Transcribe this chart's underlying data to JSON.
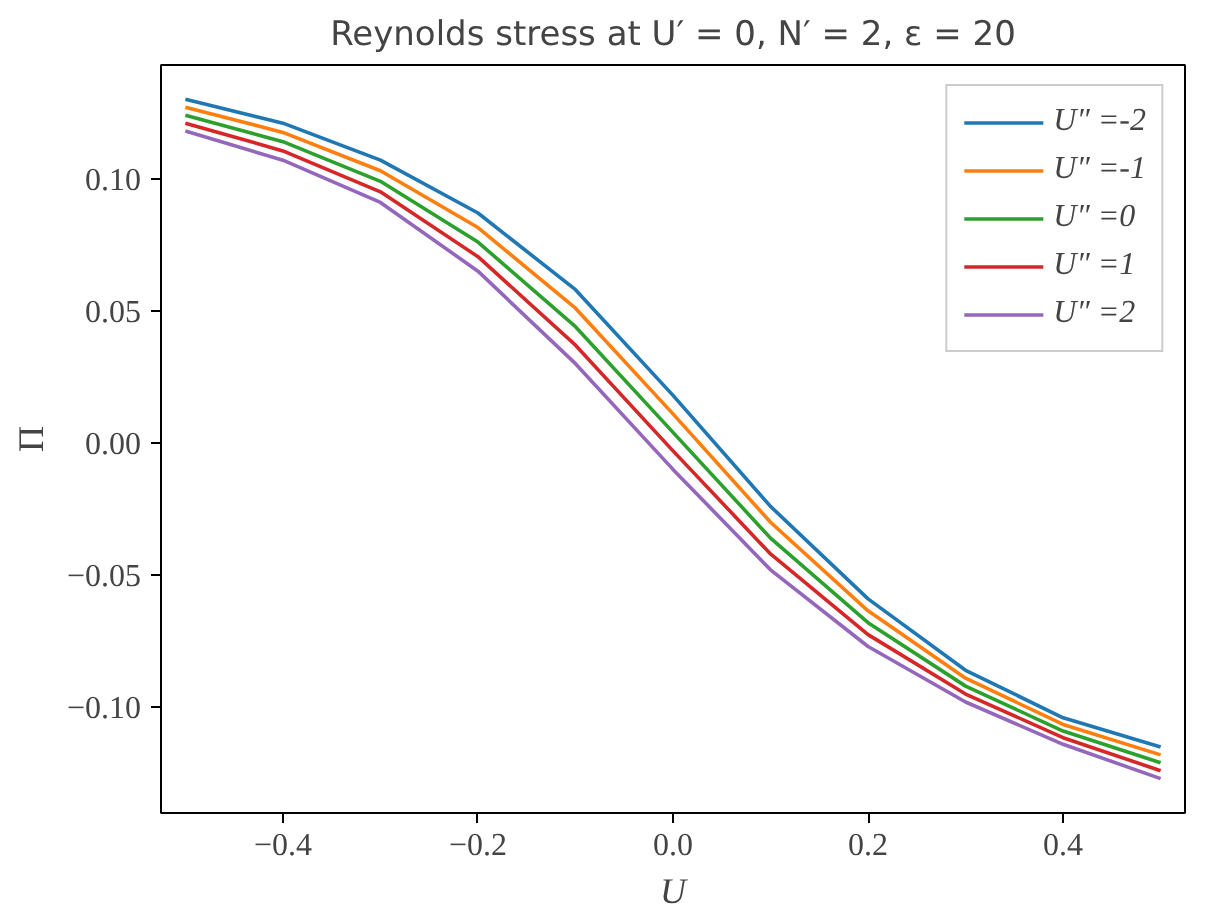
{
  "chart_data": {
    "type": "line",
    "title": "Reynolds stress at U′ = 0, N′ = 2, ε = 20",
    "xlabel": "U",
    "ylabel": "Π",
    "x": [
      -0.5,
      -0.4,
      -0.3,
      -0.2,
      -0.1,
      0.0,
      0.1,
      0.2,
      0.3,
      0.4,
      0.5
    ],
    "series": [
      {
        "name": "U″ =-2",
        "color": "#1f77b4",
        "values": [
          0.13,
          0.121,
          0.107,
          0.087,
          0.058,
          0.018,
          -0.024,
          -0.059,
          -0.086,
          -0.104,
          -0.115
        ]
      },
      {
        "name": "U″ =-1",
        "color": "#ff7f0e",
        "values": [
          0.127,
          0.1175,
          0.103,
          0.0815,
          0.051,
          0.011,
          -0.03,
          -0.0635,
          -0.089,
          -0.1065,
          -0.118
        ]
      },
      {
        "name": "U″ =0",
        "color": "#2ca02c",
        "values": [
          0.124,
          0.114,
          0.099,
          0.076,
          0.044,
          0.004,
          -0.036,
          -0.068,
          -0.092,
          -0.109,
          -0.121
        ]
      },
      {
        "name": "U″ =1",
        "color": "#d62728",
        "values": [
          0.121,
          0.1105,
          0.095,
          0.0705,
          0.037,
          -0.003,
          -0.042,
          -0.0725,
          -0.095,
          -0.1115,
          -0.124
        ]
      },
      {
        "name": "U″ =2",
        "color": "#9467bd",
        "values": [
          0.118,
          0.107,
          0.091,
          0.065,
          0.03,
          -0.01,
          -0.048,
          -0.077,
          -0.098,
          -0.114,
          -0.127
        ]
      }
    ],
    "xlim": [
      -0.525,
      0.525
    ],
    "ylim": [
      -0.14,
      0.143
    ],
    "xticks": [
      {
        "value": -0.4,
        "label": "−0.4"
      },
      {
        "value": -0.2,
        "label": "−0.2"
      },
      {
        "value": 0.0,
        "label": "0.0"
      },
      {
        "value": 0.2,
        "label": "0.2"
      },
      {
        "value": 0.4,
        "label": "0.4"
      }
    ],
    "yticks": [
      {
        "value": -0.1,
        "label": "−0.10"
      },
      {
        "value": -0.05,
        "label": "−0.05"
      },
      {
        "value": 0.0,
        "label": "0.00"
      },
      {
        "value": 0.05,
        "label": "0.05"
      },
      {
        "value": 0.1,
        "label": "0.10"
      }
    ],
    "grid": false,
    "legend": "top right",
    "line_style": "solid",
    "marker": "none"
  }
}
